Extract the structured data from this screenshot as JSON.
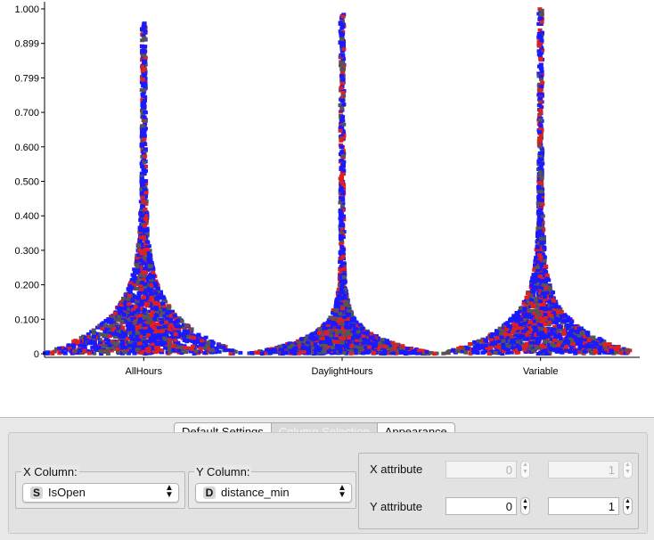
{
  "chart_data": {
    "type": "scatter",
    "categories": [
      "AllHours",
      "DaylightHours",
      "Variable"
    ],
    "y_ticks": [
      "0",
      "0.100",
      "0.200",
      "0.300",
      "0.400",
      "0.500",
      "0.600",
      "0.700",
      "0.799",
      "0.899",
      "1.000"
    ],
    "ylim": [
      0,
      1.0
    ],
    "series_colors": [
      "#1a1aff",
      "#e02020",
      "#555555"
    ],
    "grid": false,
    "distributions": [
      {
        "category": "AllHours",
        "max": 0.96,
        "bulk_height": 0.12,
        "max_halfwidth": 0.5
      },
      {
        "category": "DaylightHours",
        "max": 0.99,
        "bulk_height": 0.06,
        "max_halfwidth": 0.48
      },
      {
        "category": "Variable",
        "max": 1.0,
        "bulk_height": 0.1,
        "max_halfwidth": 0.5
      }
    ]
  },
  "tabs": [
    {
      "label": "Default Settings",
      "disabled": false
    },
    {
      "label": "Column Selection",
      "disabled": true
    },
    {
      "label": "Appearance",
      "disabled": false
    }
  ],
  "x_column": {
    "label": "X Column:",
    "type": "S",
    "value": "IsOpen"
  },
  "y_column": {
    "label": "Y Column:",
    "type": "D",
    "value": "distance_min"
  },
  "attributes": {
    "x_label": "X attribute",
    "x_values": [
      "0",
      "1"
    ],
    "y_label": "Y attribute",
    "y_values": [
      "0",
      "1"
    ]
  }
}
